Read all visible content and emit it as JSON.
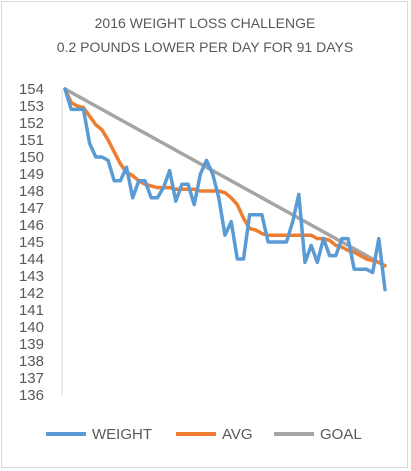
{
  "chart_data": {
    "type": "line",
    "title": [
      "2016 WEIGHT LOSS CHALLENGE",
      "0.2 POUNDS LOWER PER DAY FOR 91 DAYS"
    ],
    "xlabel": "",
    "ylabel": "",
    "ylim": [
      136,
      154
    ],
    "yticks": [
      136,
      137,
      138,
      139,
      140,
      141,
      142,
      143,
      144,
      145,
      146,
      147,
      148,
      149,
      150,
      151,
      152,
      153,
      154
    ],
    "x_count": 91,
    "grid": false,
    "legend_position": "bottom",
    "series": [
      {
        "name": "WEIGHT",
        "color": "#5b9bd5",
        "values": [
          154.0,
          152.8,
          152.8,
          152.8,
          150.8,
          150.0,
          150.0,
          149.8,
          148.6,
          148.6,
          149.4,
          147.6,
          148.6,
          148.6,
          147.6,
          147.6,
          148.2,
          149.2,
          147.4,
          148.4,
          148.4,
          147.2,
          149.0,
          149.8,
          149.0,
          147.6,
          145.4,
          146.2,
          144.0,
          144.0,
          146.6,
          146.6,
          146.6,
          145.0,
          145.0,
          145.0,
          145.0,
          146.2,
          147.8,
          143.8,
          144.8,
          143.8,
          145.2,
          144.2,
          144.2,
          145.2,
          145.2,
          143.4,
          143.4,
          143.4,
          143.2,
          145.2,
          142.2
        ]
      },
      {
        "name": "AVG",
        "color": "#ed7d31",
        "values": [
          154.0,
          153.2,
          153.0,
          152.9,
          152.4,
          151.9,
          151.6,
          151.0,
          150.3,
          149.6,
          149.1,
          148.9,
          148.6,
          148.4,
          148.3,
          148.2,
          148.2,
          148.2,
          148.1,
          148.1,
          148.1,
          148.1,
          148.0,
          148.0,
          148.0,
          148.0,
          147.9,
          147.6,
          147.2,
          146.4,
          145.8,
          145.7,
          145.5,
          145.4,
          145.4,
          145.4,
          145.4,
          145.4,
          145.4,
          145.4,
          145.4,
          145.2,
          145.2,
          145.1,
          144.8,
          144.7,
          144.5,
          144.4,
          144.2,
          144.0,
          143.9,
          143.8,
          143.6
        ]
      },
      {
        "name": "GOAL",
        "color": "#a5a5a5",
        "values": [
          154.0,
          153.8,
          153.6,
          153.4,
          153.2,
          153.0,
          152.8,
          152.6,
          152.4,
          152.2,
          152.0,
          151.8,
          151.6,
          151.4,
          151.2,
          151.0,
          150.8,
          150.6,
          150.4,
          150.2,
          150.0,
          149.8,
          149.6,
          149.4,
          149.2,
          149.0,
          148.8,
          148.6,
          148.4,
          148.2,
          148.0,
          147.8,
          147.6,
          147.4,
          147.2,
          147.0,
          146.8,
          146.6,
          146.4,
          146.2,
          146.0,
          145.8,
          145.6,
          145.4,
          145.2,
          145.0,
          144.8,
          144.6,
          144.4,
          144.2,
          144.0,
          143.8,
          143.6
        ]
      }
    ]
  }
}
